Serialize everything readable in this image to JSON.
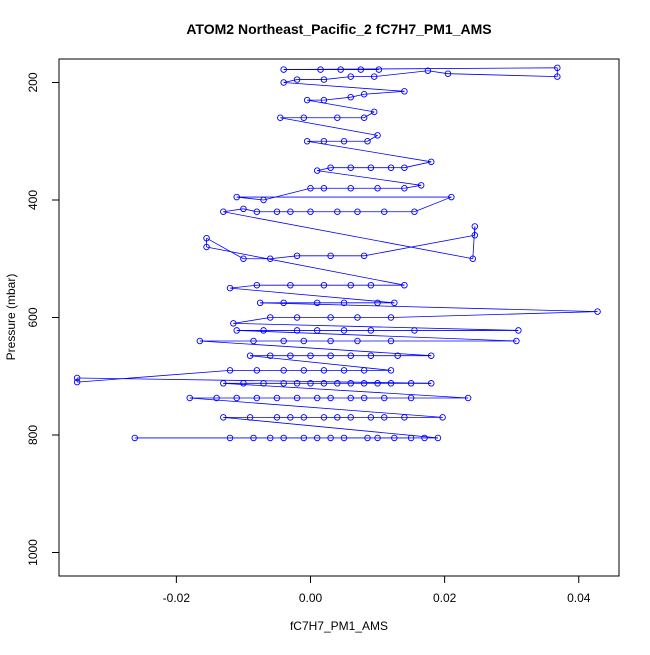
{
  "chart_data": {
    "type": "scatter",
    "title": "ATOM2 Northeast_Pacific_2 fC7H7_PM1_AMS",
    "xlabel": "fC7H7_PM1_AMS",
    "ylabel": "Pressure (mbar)",
    "xlim": [
      -0.0375,
      0.046
    ],
    "ylim": [
      1040,
      160
    ],
    "y_inverted": true,
    "x_ticks": [
      -0.02,
      0.0,
      0.02,
      0.04
    ],
    "x_tick_labels": [
      "-0.02",
      "0.00",
      "0.02",
      "0.04"
    ],
    "y_ticks": [
      200,
      400,
      600,
      800,
      1000
    ],
    "y_tick_labels": [
      "200",
      "400",
      "600",
      "800",
      "1000"
    ],
    "grid": false,
    "legend": "none",
    "marker": "open-circle",
    "connect_points": true,
    "series": [
      {
        "color": "#0000ff",
        "points": [
          [
            -0.0262,
            805
          ],
          [
            -0.012,
            805
          ],
          [
            -0.0085,
            805
          ],
          [
            -0.006,
            805
          ],
          [
            -0.004,
            805
          ],
          [
            -0.001,
            805
          ],
          [
            0.001,
            805
          ],
          [
            0.003,
            805
          ],
          [
            0.005,
            805
          ],
          [
            0.0085,
            805
          ],
          [
            0.01,
            805
          ],
          [
            0.0125,
            805
          ],
          [
            0.015,
            805
          ],
          [
            0.017,
            805
          ],
          [
            0.019,
            805
          ],
          [
            -0.013,
            770
          ],
          [
            -0.009,
            770
          ],
          [
            -0.005,
            770
          ],
          [
            -0.003,
            770
          ],
          [
            -0.001,
            770
          ],
          [
            0.002,
            770
          ],
          [
            0.004,
            770
          ],
          [
            0.006,
            770
          ],
          [
            0.009,
            770
          ],
          [
            0.011,
            770
          ],
          [
            0.014,
            770
          ],
          [
            0.0197,
            770
          ],
          [
            -0.018,
            737
          ],
          [
            -0.014,
            737
          ],
          [
            -0.011,
            737
          ],
          [
            -0.008,
            737
          ],
          [
            -0.005,
            737
          ],
          [
            -0.002,
            737
          ],
          [
            0.001,
            737
          ],
          [
            0.003,
            737
          ],
          [
            0.006,
            737
          ],
          [
            0.008,
            737
          ],
          [
            0.011,
            737
          ],
          [
            0.015,
            737
          ],
          [
            0.0235,
            737
          ],
          [
            -0.013,
            712
          ],
          [
            -0.01,
            712
          ],
          [
            -0.007,
            712
          ],
          [
            -0.004,
            712
          ],
          [
            -0.002,
            712
          ],
          [
            0.0,
            712
          ],
          [
            0.002,
            712
          ],
          [
            0.004,
            712
          ],
          [
            0.006,
            712
          ],
          [
            0.008,
            712
          ],
          [
            0.01,
            712
          ],
          [
            0.012,
            712
          ],
          [
            0.015,
            712
          ],
          [
            0.018,
            712
          ],
          [
            -0.0348,
            703
          ],
          [
            -0.0348,
            710
          ],
          [
            -0.012,
            690
          ],
          [
            -0.008,
            690
          ],
          [
            -0.004,
            690
          ],
          [
            -0.001,
            690
          ],
          [
            0.002,
            690
          ],
          [
            0.005,
            690
          ],
          [
            0.008,
            690
          ],
          [
            0.012,
            690
          ],
          [
            -0.009,
            665
          ],
          [
            -0.006,
            665
          ],
          [
            -0.003,
            665
          ],
          [
            0.0,
            665
          ],
          [
            0.003,
            665
          ],
          [
            0.006,
            665
          ],
          [
            0.009,
            665
          ],
          [
            0.013,
            665
          ],
          [
            0.018,
            665
          ],
          [
            -0.0165,
            640
          ],
          [
            -0.0085,
            640
          ],
          [
            -0.004,
            640
          ],
          [
            -0.001,
            640
          ],
          [
            0.003,
            640
          ],
          [
            0.007,
            640
          ],
          [
            0.012,
            640
          ],
          [
            0.0307,
            640
          ],
          [
            -0.011,
            622
          ],
          [
            -0.007,
            622
          ],
          [
            -0.002,
            622
          ],
          [
            0.001,
            622
          ],
          [
            0.005,
            622
          ],
          [
            0.009,
            622
          ],
          [
            0.0155,
            622
          ],
          [
            0.031,
            622
          ],
          [
            -0.0115,
            610
          ],
          [
            -0.006,
            600
          ],
          [
            -0.002,
            600
          ],
          [
            0.003,
            600
          ],
          [
            0.007,
            600
          ],
          [
            0.012,
            600
          ],
          [
            0.0428,
            590
          ],
          [
            -0.0075,
            575
          ],
          [
            -0.004,
            575
          ],
          [
            0.001,
            575
          ],
          [
            0.005,
            575
          ],
          [
            0.01,
            575
          ],
          [
            0.0125,
            575
          ],
          [
            -0.012,
            550
          ],
          [
            -0.008,
            545
          ],
          [
            -0.003,
            545
          ],
          [
            0.002,
            545
          ],
          [
            0.006,
            545
          ],
          [
            0.009,
            545
          ],
          [
            0.014,
            545
          ],
          [
            -0.0155,
            480
          ],
          [
            -0.0155,
            465
          ],
          [
            -0.01,
            500
          ],
          [
            -0.006,
            500
          ],
          [
            -0.002,
            495
          ],
          [
            0.003,
            495
          ],
          [
            0.008,
            495
          ],
          [
            0.0245,
            460
          ],
          [
            0.0245,
            445
          ],
          [
            0.0242,
            500
          ],
          [
            -0.013,
            420
          ],
          [
            -0.01,
            415
          ],
          [
            -0.008,
            420
          ],
          [
            -0.005,
            420
          ],
          [
            -0.003,
            420
          ],
          [
            0.0,
            420
          ],
          [
            0.004,
            420
          ],
          [
            0.007,
            420
          ],
          [
            0.011,
            420
          ],
          [
            0.0155,
            420
          ],
          [
            0.021,
            395
          ],
          [
            -0.011,
            395
          ],
          [
            -0.007,
            400
          ],
          [
            0.0,
            380
          ],
          [
            0.002,
            380
          ],
          [
            0.006,
            380
          ],
          [
            0.01,
            380
          ],
          [
            0.014,
            380
          ],
          [
            0.0165,
            375
          ],
          [
            0.001,
            350
          ],
          [
            0.003,
            345
          ],
          [
            0.006,
            345
          ],
          [
            0.009,
            345
          ],
          [
            0.012,
            345
          ],
          [
            0.014,
            345
          ],
          [
            0.018,
            335
          ],
          [
            -0.0005,
            300
          ],
          [
            0.002,
            300
          ],
          [
            0.005,
            300
          ],
          [
            0.0085,
            300
          ],
          [
            0.01,
            290
          ],
          [
            -0.0045,
            260
          ],
          [
            -0.001,
            260
          ],
          [
            0.004,
            260
          ],
          [
            0.008,
            260
          ],
          [
            0.0095,
            250
          ],
          [
            -0.0005,
            230
          ],
          [
            0.002,
            230
          ],
          [
            0.006,
            225
          ],
          [
            0.008,
            220
          ],
          [
            0.014,
            215
          ],
          [
            -0.004,
            200
          ],
          [
            -0.002,
            195
          ],
          [
            0.002,
            195
          ],
          [
            0.006,
            190
          ],
          [
            0.0095,
            190
          ],
          [
            0.0175,
            180
          ],
          [
            0.0205,
            185
          ],
          [
            0.0368,
            190
          ],
          [
            0.0368,
            175
          ],
          [
            -0.004,
            178
          ],
          [
            0.0015,
            178
          ],
          [
            0.0045,
            178
          ],
          [
            0.0075,
            178
          ],
          [
            0.0102,
            178
          ]
        ]
      }
    ]
  }
}
